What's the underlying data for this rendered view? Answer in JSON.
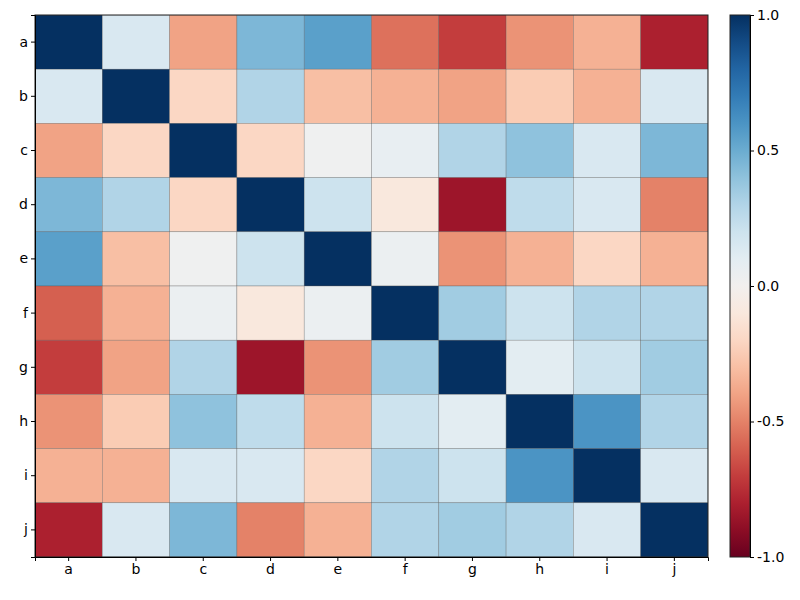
{
  "chart_data": {
    "type": "heatmap",
    "x": [
      "a",
      "b",
      "c",
      "d",
      "e",
      "f",
      "g",
      "h",
      "i",
      "j"
    ],
    "y": [
      "a",
      "b",
      "c",
      "d",
      "e",
      "f",
      "g",
      "h",
      "i",
      "j"
    ],
    "values": [
      [
        1.0,
        0.15,
        -0.4,
        0.45,
        0.55,
        -0.55,
        -0.7,
        -0.45,
        -0.35,
        -0.8
      ],
      [
        0.15,
        1.0,
        -0.2,
        0.3,
        -0.3,
        -0.35,
        -0.4,
        -0.25,
        -0.35,
        0.15
      ],
      [
        -0.4,
        -0.2,
        1.0,
        -0.2,
        0.02,
        0.07,
        0.3,
        0.4,
        0.15,
        0.45
      ],
      [
        0.45,
        0.3,
        -0.2,
        1.0,
        0.2,
        -0.1,
        -0.85,
        0.25,
        0.15,
        -0.5
      ],
      [
        0.55,
        -0.3,
        0.02,
        0.2,
        1.0,
        0.05,
        -0.45,
        -0.35,
        -0.2,
        -0.35
      ],
      [
        -0.6,
        -0.35,
        0.05,
        -0.1,
        0.05,
        1.0,
        0.35,
        0.2,
        0.3,
        0.3
      ],
      [
        -0.7,
        -0.4,
        0.3,
        -0.85,
        -0.45,
        0.35,
        1.0,
        0.1,
        0.2,
        0.35
      ],
      [
        -0.45,
        -0.25,
        0.4,
        0.25,
        -0.35,
        0.2,
        0.1,
        1.0,
        0.6,
        0.3
      ],
      [
        -0.35,
        -0.35,
        0.15,
        0.15,
        -0.2,
        0.3,
        0.2,
        0.6,
        1.0,
        0.15
      ],
      [
        -0.8,
        0.15,
        0.45,
        -0.5,
        -0.35,
        0.3,
        0.35,
        0.3,
        0.15,
        1.0
      ]
    ],
    "colorbar_range": [
      -1,
      1
    ],
    "colorbar_ticks": [
      {
        "value": -1,
        "label": "-1.0"
      },
      {
        "value": -0.5,
        "label": "-0.5"
      },
      {
        "value": 0,
        "label": "0.0"
      },
      {
        "value": 0.5,
        "label": "0.5"
      },
      {
        "value": 1,
        "label": "1.0"
      }
    ]
  }
}
